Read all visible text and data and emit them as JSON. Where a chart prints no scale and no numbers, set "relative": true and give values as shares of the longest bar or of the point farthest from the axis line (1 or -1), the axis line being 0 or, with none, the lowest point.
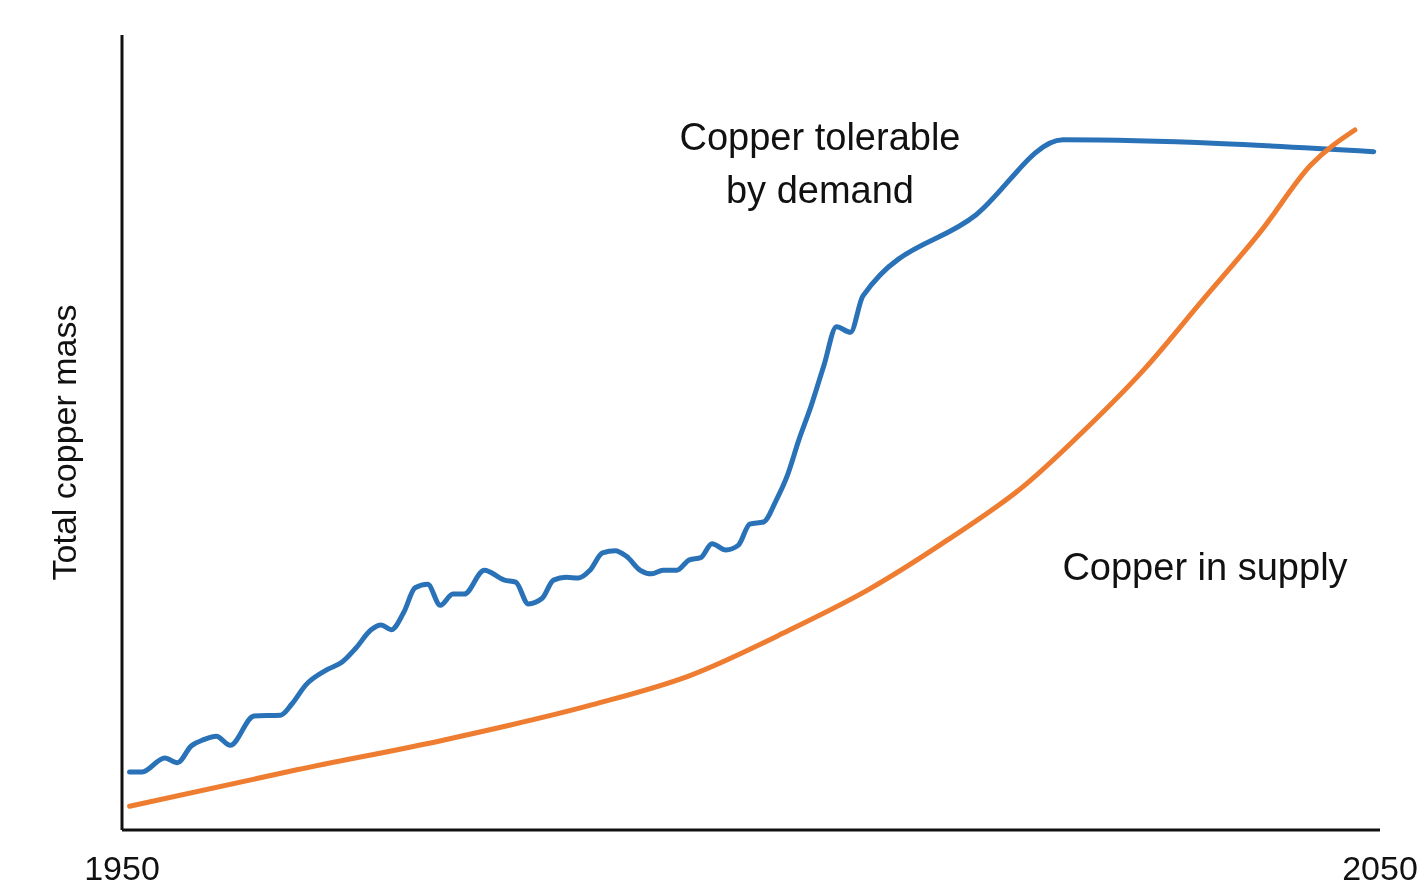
{
  "chart_data": {
    "type": "line",
    "relative": true,
    "ylabel": "Total copper mass",
    "xlim": [
      1950,
      2050
    ],
    "xticks": [
      1950,
      2050
    ],
    "line_style": "solid",
    "series": [
      {
        "name": "Copper tolerable by demand",
        "color": "#2a72b8",
        "x": [
          1950.6,
          1951.6,
          1953.4,
          1954.4,
          1955.5,
          1956.5,
          1957.5,
          1958.6,
          1960.5,
          1962.6,
          1963.5,
          1964.6,
          1966.3,
          1967.5,
          1968.6,
          1969.8,
          1970.6,
          1971.4,
          1972.4,
          1973.3,
          1974.3,
          1975.3,
          1976.3,
          1977.2,
          1978.8,
          1980.4,
          1981.3,
          1982.3,
          1983.4,
          1984.3,
          1985.3,
          1986.3,
          1987.2,
          1988.2,
          1989.2,
          1990.1,
          1991.2,
          1992.1,
          1993,
          1994.1,
          1995.1,
          1996,
          1996.9,
          1998,
          1999,
          1999.9,
          2001,
          2002,
          2002.9,
          2003.8,
          2004.8,
          2005.8,
          2006.8,
          2007.9,
          2008.9,
          2017.9,
          2024.8,
          2049.5
        ],
        "values": [
          0.083,
          0.083,
          0.103,
          0.096,
          0.12,
          0.129,
          0.134,
          0.121,
          0.163,
          0.164,
          0.18,
          0.207,
          0.229,
          0.24,
          0.26,
          0.286,
          0.293,
          0.286,
          0.311,
          0.346,
          0.351,
          0.321,
          0.337,
          0.337,
          0.371,
          0.357,
          0.354,
          0.323,
          0.331,
          0.357,
          0.361,
          0.36,
          0.371,
          0.396,
          0.399,
          0.391,
          0.371,
          0.366,
          0.371,
          0.371,
          0.386,
          0.389,
          0.409,
          0.4,
          0.407,
          0.437,
          0.44,
          0.471,
          0.507,
          0.557,
          0.607,
          0.664,
          0.719,
          0.711,
          0.763,
          0.879,
          0.986,
          0.969
        ]
      },
      {
        "name": "Copper in supply",
        "color": "#ee7d31",
        "x": [
          1950.6,
          1963.9,
          1975.7,
          1987.4,
          1995.2,
          2003.1,
          2009.3,
          2015.6,
          2021.8,
          2026.5,
          2031.2,
          2035.9,
          2040.6,
          2044.5,
          2048
        ],
        "values": [
          0.034,
          0.086,
          0.129,
          0.179,
          0.221,
          0.286,
          0.343,
          0.414,
          0.493,
          0.571,
          0.657,
          0.757,
          0.857,
          0.95,
          1
        ]
      }
    ]
  }
}
